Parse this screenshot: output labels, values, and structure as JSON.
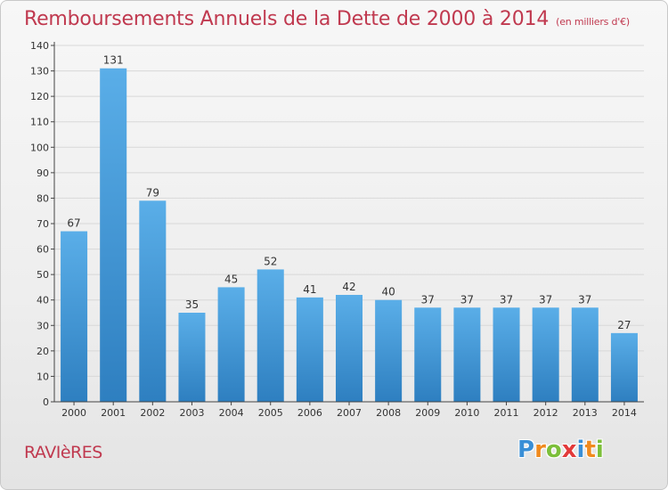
{
  "title": "Remboursements Annuels de la Dette de 2000 à 2014",
  "subtitle": "(en milliers d'€)",
  "commune": "RAVIèRES",
  "brand": {
    "letters": [
      "P",
      "r",
      "o",
      "x",
      "i",
      "t",
      "i"
    ],
    "colors": [
      "#3a8fd6",
      "#f08a1e",
      "#7cbf3a",
      "#e23a3a",
      "#3a8fd6",
      "#f08a1e",
      "#7cbf3a"
    ]
  },
  "colors": {
    "bar_top": "#5aaee8",
    "bar_bottom": "#2e7fc0",
    "axis": "#444444",
    "grid": "#d8d8d8",
    "title": "#c0394f"
  },
  "chart_data": {
    "type": "bar",
    "categories": [
      "2000",
      "2001",
      "2002",
      "2003",
      "2004",
      "2005",
      "2006",
      "2007",
      "2008",
      "2009",
      "2010",
      "2011",
      "2012",
      "2013",
      "2014"
    ],
    "values": [
      67,
      131,
      79,
      35,
      45,
      52,
      41,
      42,
      40,
      37,
      37,
      37,
      37,
      37,
      27
    ],
    "ylim": [
      0,
      140
    ],
    "yticks": [
      0,
      10,
      20,
      30,
      40,
      50,
      60,
      70,
      80,
      90,
      100,
      110,
      120,
      130,
      140
    ],
    "grid": true,
    "xlabel": "",
    "ylabel": ""
  }
}
